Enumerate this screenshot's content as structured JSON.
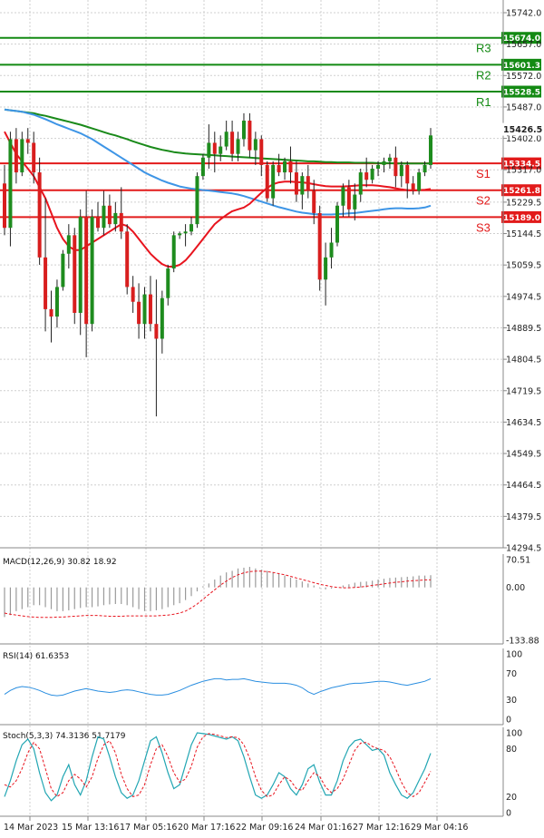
{
  "colors": {
    "bull": "#1e8c1e",
    "bear": "#d81e1e",
    "ma_red": "#e8141e",
    "ma_blue": "#3e95e6",
    "ma_green": "#1a8a1a",
    "support": "#e21a1a",
    "resistance": "#138a13",
    "macd_hist": "#9a9a9a",
    "rsi": "#2a8ee0",
    "stoch_k": "#22a6b3",
    "stoch_d": "#e8141e"
  },
  "chart_data": [
    {
      "type": "candlestick",
      "panel": "price",
      "y_ticks": [
        "15742.0",
        "15657.0",
        "15572.0",
        "15487.0",
        "15402.0",
        "15317.0",
        "15229.5",
        "15144.5",
        "15059.5",
        "14974.5",
        "14889.5",
        "14804.5",
        "14719.5",
        "14634.5",
        "14549.5",
        "14464.5",
        "14379.5",
        "14294.5"
      ],
      "ylim": [
        14294.5,
        15742.0
      ],
      "x_labels": [
        "14 Mar 2023",
        "15 Mar 13:16",
        "17 Mar 05:16",
        "20 Mar 17:16",
        "22 Mar 09:16",
        "24 Mar 01:16",
        "27 Mar 12:16",
        "29 Mar 04:16"
      ],
      "current_price": "15426.5",
      "levels": [
        {
          "name": "R3",
          "value": 15674.0,
          "label": "15674.0",
          "kind": "resistance"
        },
        {
          "name": "R2",
          "value": 15601.3,
          "label": "15601.3",
          "kind": "resistance"
        },
        {
          "name": "R1",
          "value": 15528.5,
          "label": "15528.5",
          "kind": "resistance"
        },
        {
          "name": "S1",
          "value": 15334.5,
          "label": "15334.5",
          "kind": "support"
        },
        {
          "name": "S2",
          "value": 15261.8,
          "label": "15261.8",
          "kind": "support"
        },
        {
          "name": "S3",
          "value": 15189.0,
          "label": "15189.0",
          "kind": "support"
        }
      ],
      "candles": [
        [
          15280,
          15330,
          15140,
          15160
        ],
        [
          15160,
          15420,
          15110,
          15400
        ],
        [
          15400,
          15430,
          15280,
          15310
        ],
        [
          15310,
          15420,
          15300,
          15400
        ],
        [
          15400,
          15430,
          15360,
          15390
        ],
        [
          15390,
          15420,
          15280,
          15310
        ],
        [
          15310,
          15350,
          15060,
          15080
        ],
        [
          15080,
          15240,
          14880,
          14940
        ],
        [
          14940,
          14990,
          14850,
          14920
        ],
        [
          14920,
          15020,
          14890,
          15000
        ],
        [
          15000,
          15100,
          14990,
          15090
        ],
        [
          15090,
          15170,
          15050,
          15140
        ],
        [
          15140,
          15160,
          14900,
          14930
        ],
        [
          14930,
          15210,
          14870,
          15190
        ],
        [
          15190,
          15260,
          14810,
          14900
        ],
        [
          14900,
          15210,
          14880,
          15190
        ],
        [
          15190,
          15230,
          15150,
          15160
        ],
        [
          15160,
          15260,
          15140,
          15220
        ],
        [
          15220,
          15250,
          15160,
          15170
        ],
        [
          15170,
          15230,
          15150,
          15200
        ],
        [
          15200,
          15270,
          15130,
          15150
        ],
        [
          15150,
          15170,
          14980,
          15000
        ],
        [
          15000,
          15030,
          14930,
          14960
        ],
        [
          14960,
          15010,
          14860,
          14900
        ],
        [
          14900,
          15000,
          14860,
          14980
        ],
        [
          14980,
          15030,
          14880,
          14900
        ],
        [
          14900,
          15020,
          14650,
          14860
        ],
        [
          14860,
          14990,
          14820,
          14970
        ],
        [
          14970,
          15060,
          14950,
          15050
        ],
        [
          15050,
          15150,
          15040,
          15140
        ],
        [
          15140,
          15150,
          15130,
          15145
        ],
        [
          15145,
          15170,
          15110,
          15150
        ],
        [
          15150,
          15190,
          15140,
          15170
        ],
        [
          15170,
          15310,
          15160,
          15300
        ],
        [
          15300,
          15360,
          15290,
          15350
        ],
        [
          15350,
          15440,
          15320,
          15390
        ],
        [
          15390,
          15420,
          15310,
          15360
        ],
        [
          15360,
          15410,
          15340,
          15380
        ],
        [
          15380,
          15450,
          15370,
          15420
        ],
        [
          15420,
          15450,
          15340,
          15360
        ],
        [
          15360,
          15420,
          15340,
          15400
        ],
        [
          15400,
          15470,
          15380,
          15450
        ],
        [
          15450,
          15470,
          15350,
          15370
        ],
        [
          15370,
          15420,
          15330,
          15400
        ],
        [
          15400,
          15410,
          15300,
          15330
        ],
        [
          15330,
          15340,
          15230,
          15240
        ],
        [
          15240,
          15340,
          15220,
          15330
        ],
        [
          15330,
          15360,
          15300,
          15310
        ],
        [
          15310,
          15350,
          15290,
          15340
        ],
        [
          15340,
          15380,
          15280,
          15310
        ],
        [
          15310,
          15340,
          15230,
          15250
        ],
        [
          15250,
          15310,
          15210,
          15300
        ],
        [
          15300,
          15330,
          15240,
          15260
        ],
        [
          15260,
          15290,
          15170,
          15200
        ],
        [
          15200,
          15220,
          14990,
          15020
        ],
        [
          15020,
          15120,
          14950,
          15080
        ],
        [
          15080,
          15160,
          15050,
          15120
        ],
        [
          15120,
          15230,
          15110,
          15220
        ],
        [
          15220,
          15280,
          15190,
          15270
        ],
        [
          15270,
          15290,
          15190,
          15210
        ],
        [
          15210,
          15280,
          15180,
          15250
        ],
        [
          15250,
          15320,
          15230,
          15310
        ],
        [
          15310,
          15350,
          15270,
          15290
        ],
        [
          15290,
          15330,
          15280,
          15320
        ],
        [
          15320,
          15340,
          15300,
          15330
        ],
        [
          15330,
          15350,
          15310,
          15340
        ],
        [
          15340,
          15360,
          15320,
          15350
        ],
        [
          15350,
          15380,
          15270,
          15300
        ],
        [
          15300,
          15340,
          15270,
          15330
        ],
        [
          15330,
          15340,
          15240,
          15280
        ],
        [
          15280,
          15300,
          15250,
          15260
        ],
        [
          15260,
          15320,
          15250,
          15310
        ],
        [
          15310,
          15340,
          15300,
          15330
        ],
        [
          15330,
          15430,
          15320,
          15410
        ]
      ],
      "ma_red": [
        15420,
        15390,
        15360,
        15340,
        15320,
        15300,
        15270,
        15240,
        15200,
        15160,
        15130,
        15110,
        15100,
        15100,
        15110,
        15120,
        15130,
        15140,
        15150,
        15160,
        15170,
        15165,
        15150,
        15130,
        15110,
        15090,
        15075,
        15062,
        15055,
        15055,
        15060,
        15072,
        15090,
        15110,
        15130,
        15150,
        15170,
        15183,
        15195,
        15205,
        15210,
        15215,
        15225,
        15240,
        15255,
        15268,
        15278,
        15283,
        15285,
        15285,
        15284,
        15283,
        15281,
        15278,
        15275,
        15273,
        15272,
        15272,
        15272,
        15273,
        15274,
        15275,
        15275,
        15275,
        15274,
        15272,
        15270,
        15267,
        15264,
        15262,
        15261,
        15262,
        15263,
        15265
      ],
      "ma_blue": [
        15480,
        15478,
        15476,
        15474,
        15470,
        15466,
        15460,
        15454,
        15447,
        15440,
        15434,
        15428,
        15422,
        15416,
        15408,
        15400,
        15390,
        15380,
        15370,
        15360,
        15350,
        15340,
        15330,
        15320,
        15310,
        15302,
        15295,
        15288,
        15282,
        15277,
        15272,
        15269,
        15266,
        15264,
        15262,
        15261,
        15259,
        15257,
        15255,
        15253,
        15250,
        15246,
        15241,
        15236,
        15231,
        15226,
        15221,
        15216,
        15212,
        15208,
        15204,
        15201,
        15199,
        15197,
        15196,
        15196,
        15196,
        15197,
        15198,
        15199,
        15200,
        15202,
        15204,
        15206,
        15208,
        15210,
        15212,
        15213,
        15213,
        15212,
        15212,
        15213,
        15215,
        15220
      ],
      "ma_green": [
        15480,
        15478,
        15476,
        15474,
        15472,
        15470,
        15466,
        15463,
        15459,
        15455,
        15451,
        15447,
        15443,
        15439,
        15434,
        15429,
        15424,
        15419,
        15414,
        15410,
        15405,
        15400,
        15394,
        15389,
        15384,
        15379,
        15375,
        15371,
        15368,
        15365,
        15363,
        15361,
        15360,
        15359,
        15358,
        15357,
        15356,
        15355,
        15354,
        15353,
        15352,
        15351,
        15350,
        15349,
        15348,
        15347,
        15346,
        15345,
        15344,
        15343,
        15342,
        15341,
        15340,
        15340,
        15339,
        15338,
        15338,
        15337,
        15337,
        15337,
        15336,
        15336,
        15336,
        15336,
        15335,
        15335,
        15335,
        15334,
        15334,
        15334,
        15334,
        15334,
        15334,
        15334
      ]
    },
    {
      "type": "bar",
      "panel": "macd",
      "label": "MACD(12,26,9) 30.82 18.92",
      "y_ticks": [
        "70.51",
        "0.00",
        "-133.88"
      ],
      "ylim": [
        -133.88,
        70.51
      ],
      "histogram": [
        -75,
        -70,
        -60,
        -55,
        -50,
        -45,
        -45,
        -50,
        -55,
        -60,
        -60,
        -58,
        -55,
        -52,
        -50,
        -50,
        -48,
        -45,
        -43,
        -42,
        -42,
        -45,
        -50,
        -55,
        -60,
        -60,
        -58,
        -55,
        -50,
        -45,
        -40,
        -32,
        -22,
        -10,
        3,
        10,
        20,
        30,
        38,
        42,
        48,
        50,
        52,
        48,
        45,
        42,
        38,
        35,
        30,
        25,
        20,
        15,
        10,
        5,
        -2,
        -5,
        -3,
        0,
        5,
        8,
        12,
        14,
        15,
        17,
        20,
        22,
        24,
        25,
        26,
        27,
        28,
        30,
        30,
        31
      ],
      "signal": [
        -65,
        -68,
        -70,
        -72,
        -74,
        -75,
        -76,
        -76,
        -76,
        -75,
        -75,
        -74,
        -73,
        -72,
        -71,
        -71,
        -71,
        -72,
        -73,
        -73,
        -73,
        -72,
        -72,
        -72,
        -72,
        -72,
        -72,
        -71,
        -70,
        -68,
        -65,
        -60,
        -52,
        -42,
        -30,
        -18,
        -6,
        6,
        16,
        25,
        32,
        37,
        40,
        41,
        41,
        40,
        38,
        35,
        32,
        28,
        24,
        20,
        16,
        12,
        8,
        5,
        2,
        0,
        -1,
        -1,
        0,
        1,
        3,
        5,
        7,
        9,
        11,
        13,
        14,
        16,
        17,
        18,
        19,
        19
      ]
    },
    {
      "type": "line",
      "panel": "rsi",
      "label": "RSI(14) 61.6353",
      "y_ticks": [
        "100",
        "70",
        "30",
        "0"
      ],
      "ylim": [
        0,
        100
      ],
      "values": [
        38,
        44,
        48,
        50,
        49,
        47,
        44,
        40,
        37,
        36,
        37,
        40,
        43,
        45,
        47,
        45,
        43,
        42,
        41,
        42,
        44,
        45,
        44,
        42,
        40,
        38,
        37,
        37,
        38,
        41,
        44,
        48,
        52,
        55,
        58,
        60,
        62,
        62,
        60,
        61,
        61,
        62,
        60,
        58,
        57,
        56,
        55,
        55,
        55,
        54,
        52,
        48,
        42,
        38,
        42,
        45,
        48,
        50,
        52,
        54,
        55,
        55,
        56,
        57,
        58,
        58,
        57,
        55,
        53,
        52,
        54,
        56,
        58,
        62
      ]
    },
    {
      "type": "line",
      "panel": "stoch",
      "label": "Stoch(5,3,3) 74.3136 51.7179",
      "y_ticks": [
        "100",
        "80",
        "20",
        "0"
      ],
      "ylim": [
        0,
        100
      ],
      "k": [
        20,
        40,
        65,
        85,
        92,
        80,
        50,
        25,
        15,
        22,
        45,
        60,
        35,
        22,
        40,
        70,
        95,
        92,
        70,
        45,
        25,
        18,
        22,
        40,
        65,
        90,
        95,
        75,
        50,
        30,
        35,
        60,
        85,
        100,
        99,
        98,
        96,
        94,
        92,
        95,
        90,
        70,
        45,
        22,
        18,
        22,
        35,
        50,
        45,
        30,
        22,
        35,
        55,
        60,
        38,
        22,
        22,
        40,
        65,
        82,
        90,
        92,
        85,
        78,
        80,
        72,
        50,
        35,
        22,
        18,
        25,
        40,
        55,
        74.3
      ],
      "d": [
        35,
        32,
        40,
        55,
        75,
        88,
        80,
        55,
        30,
        20,
        25,
        40,
        48,
        42,
        32,
        45,
        68,
        85,
        90,
        75,
        48,
        30,
        20,
        22,
        35,
        60,
        80,
        85,
        70,
        50,
        38,
        42,
        58,
        82,
        95,
        99,
        98,
        96,
        94,
        95,
        94,
        85,
        68,
        45,
        28,
        20,
        22,
        35,
        45,
        40,
        30,
        28,
        40,
        50,
        45,
        32,
        25,
        30,
        42,
        60,
        78,
        87,
        88,
        83,
        80,
        78,
        70,
        55,
        38,
        25,
        20,
        25,
        38,
        51.7
      ]
    }
  ]
}
